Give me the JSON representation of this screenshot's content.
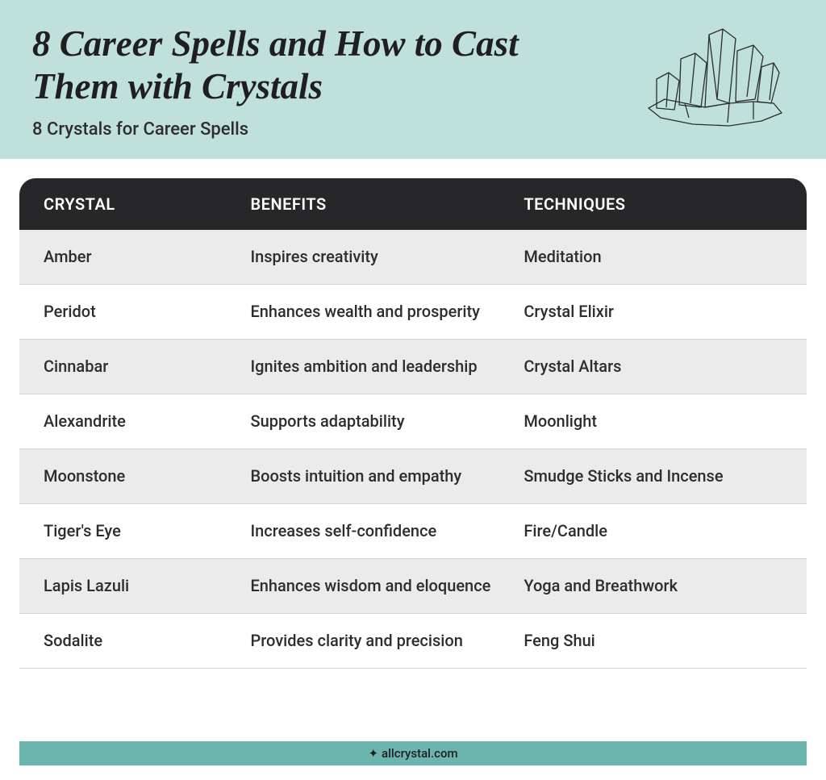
{
  "header": {
    "title": "8 Career Spells and How to Cast Them with Crystals",
    "subtitle": "8 Crystals for Career Spells",
    "bg_color": "#bfe0db",
    "title_color": "#1f1f1f",
    "title_fontsize": 45,
    "subtitle_fontsize": 22
  },
  "table": {
    "header_bg": "#27272a",
    "header_text_color": "#ffffff",
    "row_alt_bg": "#ebebeb",
    "row_bg": "#ffffff",
    "border_color": "#d4d4d4",
    "text_color": "#2d2d2d",
    "cell_fontsize": 20,
    "columns": [
      "CRYSTAL",
      "BENEFITS",
      "TECHNIQUES"
    ],
    "rows": [
      {
        "crystal": "Amber",
        "benefits": "Inspires creativity",
        "techniques": "Meditation"
      },
      {
        "crystal": "Peridot",
        "benefits": "Enhances wealth and prosperity",
        "techniques": "Crystal Elixir"
      },
      {
        "crystal": "Cinnabar",
        "benefits": "Ignites ambition and leadership",
        "techniques": "Crystal Altars"
      },
      {
        "crystal": "Alexandrite",
        "benefits": "Supports adaptability",
        "techniques": "Moonlight"
      },
      {
        "crystal": "Moonstone",
        "benefits": "Boosts intuition and empathy",
        "techniques": "Smudge Sticks and Incense"
      },
      {
        "crystal": "Tiger's Eye",
        "benefits": "Increases self-confidence",
        "techniques": "Fire/Candle"
      },
      {
        "crystal": "Lapis Lazuli",
        "benefits": "Enhances wisdom and eloquence",
        "techniques": "Yoga and Breathwork"
      },
      {
        "crystal": "Sodalite",
        "benefits": "Provides clarity and precision",
        "techniques": "Feng Shui"
      }
    ]
  },
  "footer": {
    "text": "allcrystal.com",
    "bg_color": "#6bb5ae"
  }
}
